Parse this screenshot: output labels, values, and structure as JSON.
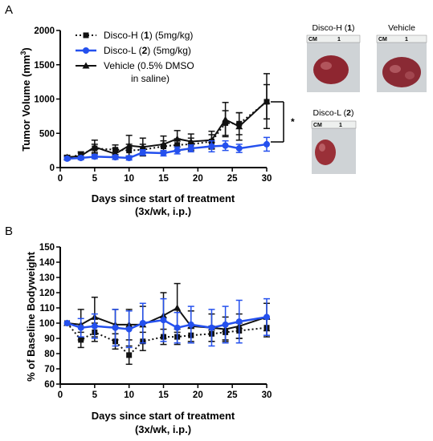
{
  "panel_labels": [
    "A",
    "B"
  ],
  "colors": {
    "disco_h": "#111111",
    "disco_l": "#2450ee",
    "vehicle": "#111111"
  },
  "photos": {
    "disco_h": {
      "pre": "Disco-H (",
      "num": "1",
      "post": ")"
    },
    "vehicle": {
      "label": "Vehicle"
    },
    "disco_l": {
      "pre": "Disco-L (",
      "num": "2",
      "post": ")"
    },
    "ruler_cm": "CM",
    "ruler_digit": "1"
  },
  "significance": "*",
  "chart_data": [
    {
      "type": "line",
      "panel": "A",
      "xlabel": "Days since start of treatment",
      "xlabel_line2": "(3x/wk, i.p.)",
      "ylabel_pre": "Tumor Volume (mm",
      "ylabel_sup": "3",
      "ylabel_post": ")",
      "xlim": [
        0,
        30
      ],
      "ylim": [
        0,
        2000
      ],
      "xticks": [
        0,
        5,
        10,
        15,
        20,
        25,
        30
      ],
      "yticks": [
        0,
        500,
        1000,
        1500,
        2000
      ],
      "legend": [
        {
          "pre": "Disco-H (",
          "num": "1",
          "post": ") (5mg/kg)"
        },
        {
          "pre": "Disco-L (",
          "num": "2",
          "post": ") (5mg/kg)"
        },
        {
          "line1": "Vehicle (0.5% DMSO",
          "line2": "in saline)"
        }
      ],
      "series": [
        {
          "name": "Disco-H (1) (5mg/kg)",
          "style": "dotted",
          "marker": "square",
          "x": [
            1,
            3,
            5,
            8,
            10,
            12,
            15,
            17,
            19,
            22,
            24,
            26,
            30
          ],
          "y": [
            140,
            190,
            280,
            260,
            250,
            260,
            310,
            330,
            340,
            380,
            650,
            640,
            960
          ],
          "err": [
            25,
            40,
            60,
            70,
            90,
            80,
            80,
            90,
            90,
            100,
            180,
            160,
            250
          ]
        },
        {
          "name": "Disco-L (2) (5mg/kg)",
          "style": "solid",
          "marker": "circle",
          "x": [
            1,
            3,
            5,
            8,
            10,
            12,
            15,
            17,
            19,
            22,
            24,
            26,
            30
          ],
          "y": [
            130,
            140,
            160,
            150,
            140,
            220,
            210,
            250,
            280,
            310,
            320,
            280,
            340
          ],
          "err": [
            20,
            25,
            30,
            30,
            30,
            40,
            40,
            50,
            50,
            80,
            70,
            60,
            100
          ]
        },
        {
          "name": "Vehicle (0.5% DMSO in saline)",
          "style": "solid",
          "marker": "triangle",
          "x": [
            1,
            3,
            5,
            8,
            10,
            12,
            15,
            17,
            19,
            22,
            24,
            26,
            30
          ],
          "y": [
            150,
            170,
            300,
            200,
            320,
            300,
            340,
            420,
            380,
            400,
            700,
            600,
            970
          ],
          "err": [
            30,
            40,
            100,
            80,
            150,
            130,
            120,
            120,
            110,
            130,
            250,
            200,
            400
          ]
        }
      ]
    },
    {
      "type": "line",
      "panel": "B",
      "xlabel": "Days since start of treatment",
      "xlabel_line2": "(3x/wk, i.p.)",
      "ylabel": "% of Baseline Bodyweight",
      "xlim": [
        0,
        30
      ],
      "ylim": [
        60,
        150
      ],
      "xticks": [
        0,
        5,
        10,
        15,
        20,
        25,
        30
      ],
      "yticks": [
        60,
        70,
        80,
        90,
        100,
        110,
        120,
        130,
        140,
        150
      ],
      "series": [
        {
          "name": "Disco-H (1) (5mg/kg)",
          "style": "dotted",
          "marker": "square",
          "x": [
            1,
            3,
            5,
            8,
            10,
            12,
            15,
            17,
            19,
            22,
            24,
            26,
            30
          ],
          "y": [
            100,
            89,
            94,
            88,
            79,
            88,
            91,
            91,
            92,
            93,
            94,
            95,
            97
          ],
          "err": [
            0,
            5,
            6,
            5,
            6,
            6,
            5,
            5,
            5,
            5,
            5,
            5,
            6
          ]
        },
        {
          "name": "Disco-L (2) (5mg/kg)",
          "style": "solid",
          "marker": "circle",
          "x": [
            1,
            3,
            5,
            8,
            10,
            12,
            15,
            17,
            19,
            22,
            24,
            26,
            30
          ],
          "y": [
            100,
            97,
            98,
            97,
            96,
            100,
            102,
            97,
            99,
            97,
            99,
            101,
            104
          ],
          "err": [
            0,
            6,
            8,
            12,
            12,
            13,
            14,
            10,
            12,
            12,
            12,
            14,
            12
          ]
        },
        {
          "name": "Vehicle (0.5% DMSO in saline)",
          "style": "solid",
          "marker": "triangle",
          "x": [
            1,
            3,
            5,
            8,
            10,
            12,
            15,
            17,
            19,
            22,
            24,
            26,
            30
          ],
          "y": [
            100,
            99,
            104,
            99,
            99,
            99,
            105,
            110,
            98,
            97,
            96,
            98,
            104
          ],
          "err": [
            0,
            10,
            13,
            10,
            10,
            12,
            15,
            16,
            10,
            9,
            8,
            8,
            9
          ]
        }
      ]
    }
  ]
}
